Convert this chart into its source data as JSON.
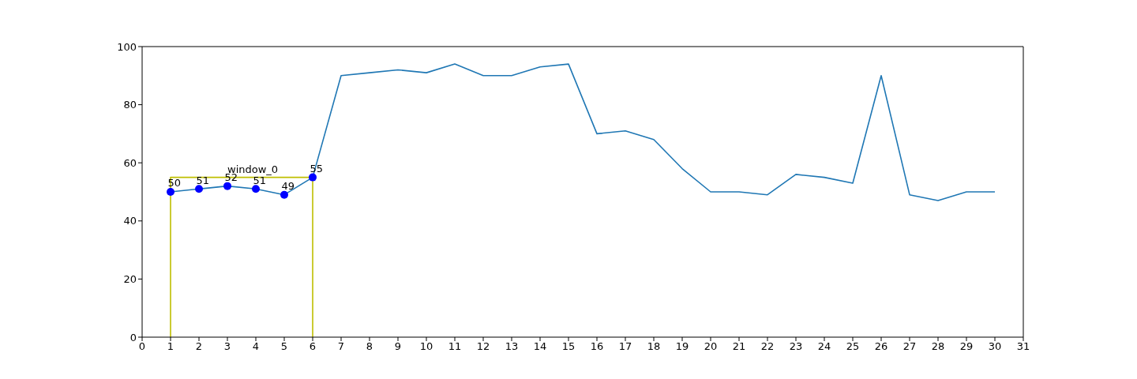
{
  "chart_data": {
    "type": "line",
    "series": [
      {
        "color": "#1f77b4",
        "marker": "none",
        "x": [
          1,
          2,
          3,
          4,
          5,
          6,
          7,
          8,
          9,
          10,
          11,
          12,
          13,
          14,
          15,
          16,
          17,
          18,
          19,
          20,
          21,
          22,
          23,
          24,
          25,
          26,
          27,
          28,
          29,
          30
        ],
        "values": [
          50,
          51,
          52,
          51,
          49,
          55,
          90,
          91,
          92,
          91,
          94,
          90,
          90,
          93,
          94,
          70,
          71,
          68,
          58,
          50,
          50,
          49,
          56,
          55,
          53,
          90,
          49,
          47,
          50,
          50
        ]
      },
      {
        "type": "line",
        "color": "#bfbf00",
        "marker": "none",
        "x": [
          1,
          1,
          6,
          6
        ],
        "values": [
          0,
          55,
          55,
          0
        ]
      },
      {
        "type": "scatter",
        "color": "#0000ff",
        "marker": "circle",
        "x": [
          1,
          2,
          3,
          4,
          5,
          6
        ],
        "values": [
          50,
          51,
          52,
          51,
          49,
          55
        ],
        "value_labels": [
          "50",
          "51",
          "52",
          "51",
          "49",
          "55"
        ]
      }
    ],
    "annotations": [
      {
        "text": "window_0",
        "x": 3,
        "y": 55
      }
    ],
    "xlim": [
      0,
      31
    ],
    "xticks": [
      0,
      1,
      2,
      3,
      4,
      5,
      6,
      7,
      8,
      9,
      10,
      11,
      12,
      13,
      14,
      15,
      16,
      17,
      18,
      19,
      20,
      21,
      22,
      23,
      24,
      25,
      26,
      27,
      28,
      29,
      30,
      31
    ],
    "ylim": [
      0,
      100
    ],
    "yticks": [
      0,
      20,
      40,
      60,
      80,
      100
    ]
  }
}
